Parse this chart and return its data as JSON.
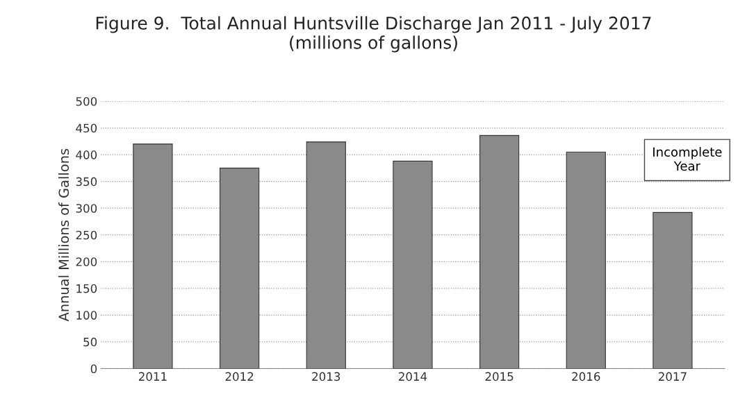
{
  "chart_data": {
    "type": "bar",
    "title": "Figure 9.  Total Annual Huntsville Discharge Jan 2011 - July 2017\n(millions of gallons)",
    "ylabel": "Annual Millions of Gallons",
    "categories": [
      "2011",
      "2012",
      "2013",
      "2014",
      "2015",
      "2016",
      "2017"
    ],
    "values": [
      420,
      375,
      424,
      388,
      436,
      405,
      292
    ],
    "color": "#8a8a8a",
    "ylim": [
      0,
      500
    ],
    "yticks": [
      0,
      50,
      100,
      150,
      200,
      250,
      300,
      350,
      400,
      450,
      500
    ],
    "grid": "y",
    "annotations": [
      "Incomplete\nYear"
    ]
  }
}
